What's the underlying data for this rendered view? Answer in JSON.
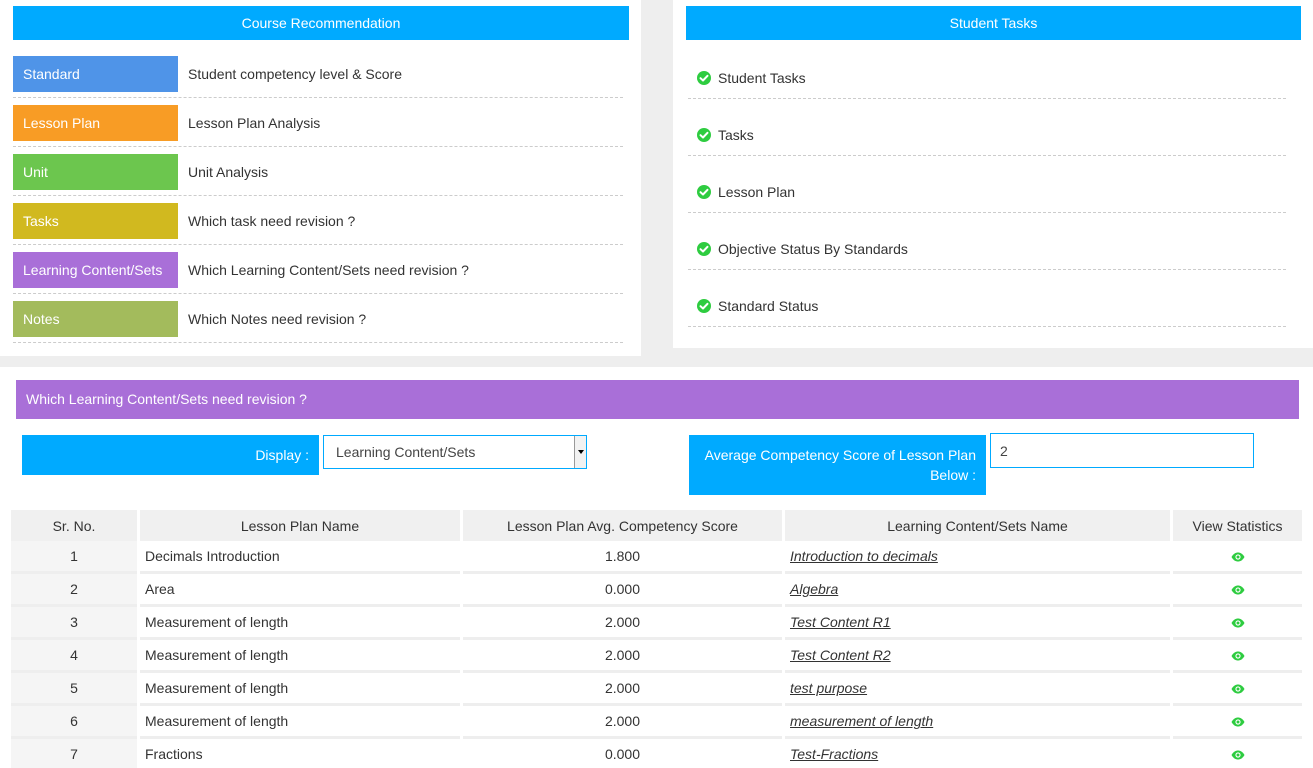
{
  "course_recommendation": {
    "title": "Course Recommendation",
    "items": [
      {
        "tag": "Standard",
        "color": "#4f94e8",
        "description": "Student competency level & Score"
      },
      {
        "tag": "Lesson Plan",
        "color": "#f89c25",
        "description": "Lesson Plan Analysis"
      },
      {
        "tag": "Unit",
        "color": "#6cc64e",
        "description": "Unit Analysis"
      },
      {
        "tag": "Tasks",
        "color": "#d1b91f",
        "description": "Which task need revision ?"
      },
      {
        "tag": "Learning Content/Sets",
        "color": "#a96fd8",
        "description": "Which Learning Content/Sets need revision ?"
      },
      {
        "tag": "Notes",
        "color": "#a3bb5c",
        "description": "Which Notes need revision ?"
      }
    ]
  },
  "student_tasks": {
    "title": "Student Tasks",
    "items": [
      {
        "label": "Student Tasks",
        "icon": "check-circle-icon"
      },
      {
        "label": "Tasks",
        "icon": "check-circle-icon"
      },
      {
        "label": "Lesson Plan",
        "icon": "check-circle-icon"
      },
      {
        "label": "Objective Status By Standards",
        "icon": "check-circle-icon"
      },
      {
        "label": "Standard Status",
        "icon": "check-circle-icon"
      }
    ]
  },
  "revision_section": {
    "title": "Which Learning Content/Sets need revision ?",
    "display_label": "Display :",
    "display_value": "Learning Content/Sets",
    "avg_label": "Average Competency Score of Lesson Plan Below :",
    "avg_value": "2"
  },
  "table": {
    "headers": [
      "Sr. No.",
      "Lesson Plan Name",
      "Lesson Plan Avg. Competency Score",
      "Learning Content/Sets Name",
      "View Statistics"
    ],
    "rows": [
      {
        "sr": "1",
        "lesson": "Decimals Introduction",
        "score": "1.800",
        "content": "Introduction to decimals"
      },
      {
        "sr": "2",
        "lesson": "Area",
        "score": "0.000",
        "content": "Algebra"
      },
      {
        "sr": "3",
        "lesson": "Measurement of length",
        "score": "2.000",
        "content": "Test Content R1"
      },
      {
        "sr": "4",
        "lesson": "Measurement of length",
        "score": "2.000",
        "content": "Test Content R2"
      },
      {
        "sr": "5",
        "lesson": "Measurement of length",
        "score": "2.000",
        "content": "test purpose"
      },
      {
        "sr": "6",
        "lesson": "Measurement of length",
        "score": "2.000",
        "content": "measurement of length"
      },
      {
        "sr": "7",
        "lesson": "Fractions",
        "score": "0.000",
        "content": "Test-Fractions"
      }
    ],
    "view_icon": "eye-icon",
    "icon_color": "#2ecc40"
  }
}
